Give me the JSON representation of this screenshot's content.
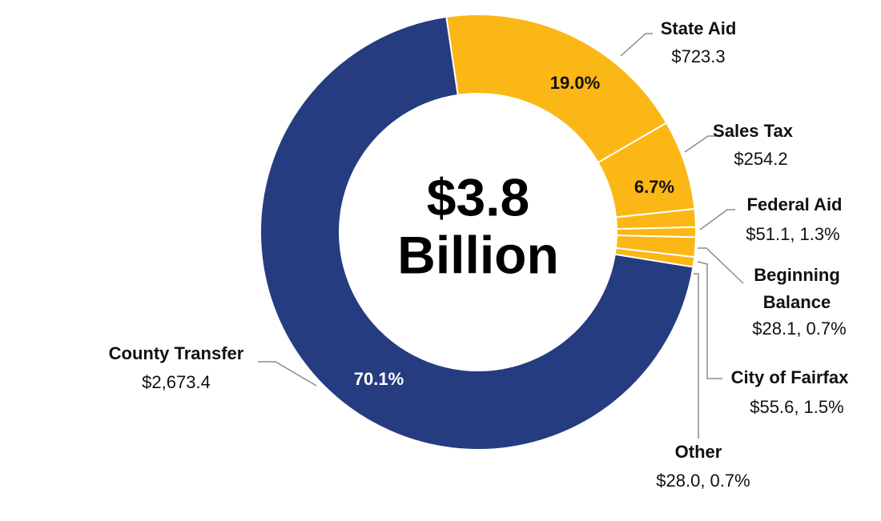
{
  "chart_data": {
    "type": "donut",
    "categories": [
      "State Aid",
      "Sales Tax",
      "Federal Aid",
      "Beginning Balance",
      "City of Fairfax",
      "Other",
      "County Transfer"
    ],
    "values": [
      723.3,
      254.2,
      51.1,
      28.1,
      55.6,
      28.0,
      2673.4
    ],
    "value_labels": [
      "$723.3",
      "$254.2",
      "$51.1, 1.3%",
      "$28.1, 0.7%",
      "$55.6, 1.5%",
      "$28.0, 0.7%",
      "$2,673.4"
    ],
    "percent_labels": [
      "19.0%",
      "6.7%",
      null,
      null,
      null,
      null,
      "70.1%"
    ],
    "colors": [
      "#fbb715",
      "#fbb715",
      "#fbb715",
      "#fbb715",
      "#fbb715",
      "#fbb715",
      "#253c80"
    ],
    "center_label": [
      "$3.8",
      "Billion"
    ]
  }
}
